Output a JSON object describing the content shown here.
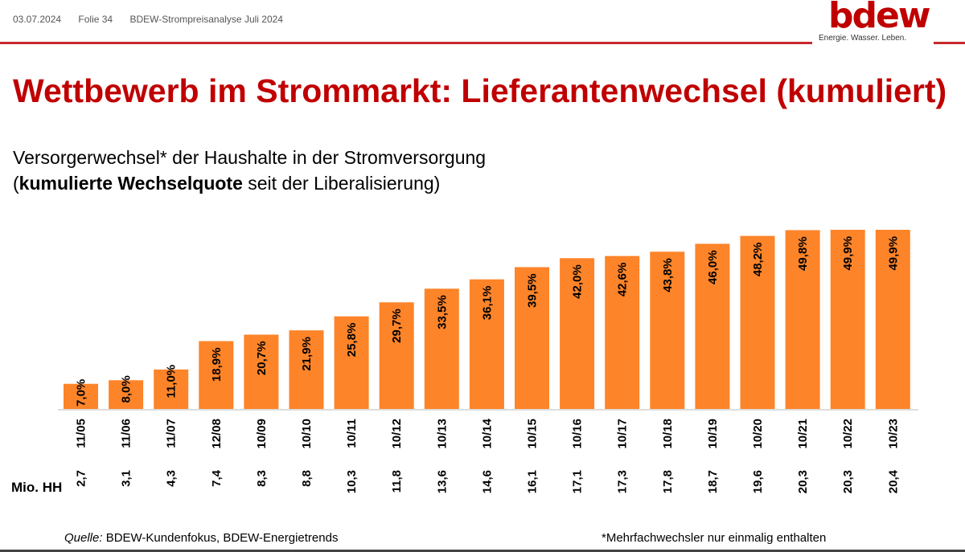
{
  "header": {
    "date": "03.07.2024",
    "slide": "Folie 34",
    "doc": "BDEW-Strompreisanalyse Juli 2024",
    "logo": "bdew",
    "tagline": "Energie. Wasser. Leben."
  },
  "title": "Wettbewerb im Strommarkt: Lieferantenwechsel (kumuliert)",
  "subtitle": {
    "line1": "Versorgerwechsel* der Haushalte in der Stromversorgung",
    "open": "(",
    "bold": "kumulierte Wechselquote",
    "rest": " seit der Liberalisierung)"
  },
  "footer": {
    "source_label": "Quelle:",
    "source": " BDEW-Kundenfokus, BDEW-Energietrends",
    "note": "*Mehrfachwechsler nur einmalig enthalten"
  },
  "colors": {
    "bar": "#fd8429",
    "title": "#c00000",
    "rule": "#c8282d"
  },
  "chart_data": {
    "type": "bar",
    "categories": [
      "11/05",
      "11/06",
      "11/07",
      "12/08",
      "10/09",
      "10/10",
      "10/11",
      "10/12",
      "10/13",
      "10/14",
      "10/15",
      "10/16",
      "10/17",
      "10/18",
      "10/19",
      "10/20",
      "10/21",
      "10/22",
      "10/23"
    ],
    "values": [
      7.0,
      8.0,
      11.0,
      18.9,
      20.7,
      21.9,
      25.8,
      29.7,
      33.5,
      36.1,
      39.5,
      42.0,
      42.6,
      43.8,
      46.0,
      48.2,
      49.8,
      49.9,
      49.9
    ],
    "value_labels": [
      "7,0%",
      "8,0%",
      "11,0%",
      "18,9%",
      "20,7%",
      "21,9%",
      "25,8%",
      "29,7%",
      "33,5%",
      "36,1%",
      "39,5%",
      "42,0%",
      "42,6%",
      "43,8%",
      "46,0%",
      "48,2%",
      "49,8%",
      "49,9%",
      "49,9%"
    ],
    "row_label": "Mio. HH",
    "households": [
      "2,7",
      "3,1",
      "4,3",
      "7,4",
      "8,3",
      "8,8",
      "10,3",
      "11,8",
      "13,6",
      "14,6",
      "16,1",
      "17,1",
      "17,3",
      "17,8",
      "18,7",
      "19,6",
      "20,3",
      "20,3",
      "20,4"
    ],
    "unit": "%",
    "ylim": [
      0,
      50
    ],
    "grid": false
  }
}
